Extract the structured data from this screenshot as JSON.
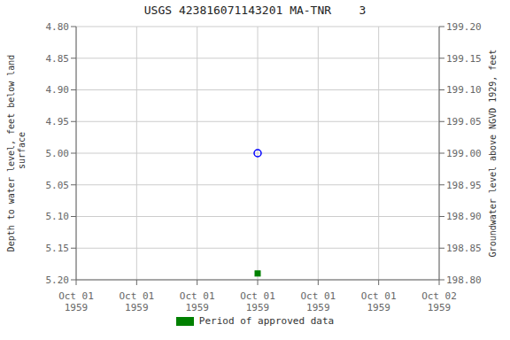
{
  "chart_data": {
    "type": "scatter",
    "title": "USGS 423816071143201 MA-TNR    3",
    "ylabel": "Depth to water level, feet below land\n surface",
    "y2label": "Groundwater level above NGVD 1929, feet",
    "categories": [
      "Oct 01\n1959",
      "Oct 01\n1959",
      "Oct 01\n1959",
      "Oct 01\n1959",
      "Oct 01\n1959",
      "Oct 01\n1959",
      "Oct 02\n1959"
    ],
    "series": [
      {
        "color": "blue",
        "marker": "open_circle",
        "values": [
          null,
          null,
          null,
          5.0,
          null,
          null,
          null
        ]
      },
      {
        "color": "green",
        "marker": "square",
        "values": [
          null,
          null,
          null,
          5.19,
          null,
          null,
          null
        ]
      }
    ],
    "ylim": [
      5.2,
      4.8
    ],
    "yticks": [
      {
        "value": 4.8,
        "label": "4.80"
      },
      4.85,
      {
        "value": 4.9,
        "label": "4.90"
      },
      4.95,
      {
        "value": 5.0,
        "label": "5.00"
      },
      5.05,
      {
        "value": 5.1,
        "label": "5.10"
      },
      5.15,
      {
        "value": 5.2,
        "label": "5.20"
      }
    ],
    "y2lim": [
      198.8,
      199.2
    ],
    "y2ticks": [
      {
        "value": 198.8,
        "label": "198.80"
      },
      198.85,
      {
        "value": 198.9,
        "label": "198.90"
      },
      198.95,
      {
        "value": 199.0,
        "label": "199.00"
      },
      199.05,
      {
        "value": 199.1,
        "label": "199.10"
      },
      199.15,
      {
        "value": 199.2,
        "label": "199.20"
      }
    ],
    "grid": true,
    "legend": "bottom",
    "legend_entries": [
      {
        "name": "Period of approved data",
        "color": "green"
      }
    ]
  }
}
